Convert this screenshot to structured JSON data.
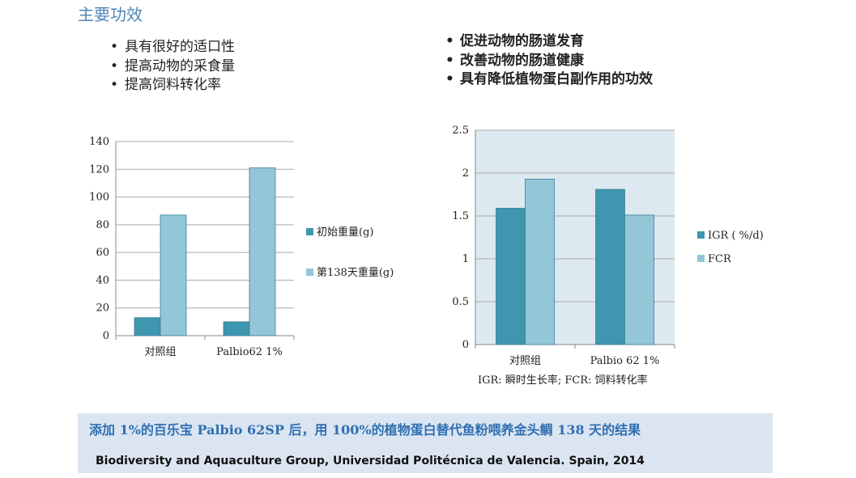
{
  "title": "主要功效",
  "bullets_left": [
    "具有很好的适口性",
    "提高动物的采食量",
    "提高饲料转化率"
  ],
  "bullets_right": [
    "促进动物的肠道发育",
    "改善动物的肠道健康",
    "具有降低植物蛋白副作用的功效"
  ],
  "colors": {
    "series_dark": "#3f96af",
    "series_light": "#93c6d7",
    "plot_bg": "#dde9f0",
    "grid": "#a9a9a9"
  },
  "chart_data": [
    {
      "type": "bar",
      "categories": [
        "对照组",
        "Palbio62 1%"
      ],
      "series": [
        {
          "name": "初始重量(g)",
          "values": [
            13,
            10
          ]
        },
        {
          "name": "第138天重量(g)",
          "values": [
            87,
            121
          ]
        }
      ],
      "ylim": [
        0,
        140
      ],
      "yticks": [
        "0",
        "20",
        "40",
        "60",
        "80",
        "100",
        "120",
        "140"
      ],
      "grid": true,
      "legend": "right"
    },
    {
      "type": "bar",
      "categories": [
        "对照组",
        "Palbio 62 1%"
      ],
      "series": [
        {
          "name": "IGR ( %/d)",
          "values": [
            1.59,
            1.81
          ]
        },
        {
          "name": "FCR",
          "values": [
            1.93,
            1.51
          ]
        }
      ],
      "ylim": [
        0,
        2.5
      ],
      "yticks": [
        "0",
        "0.5",
        "1",
        "1.5",
        "2",
        "2.5"
      ],
      "grid": true,
      "legend": "right",
      "annotation": "IGR: 瞬时生长率;  FCR: 饲料转化率"
    }
  ],
  "footer": {
    "main": "添加 1%的百乐宝 Palbio 62SP 后，用 100%的植物蛋白替代鱼粉喂养金头鲷 138 天的结果",
    "source": "Biodiversity and Aquaculture Group, Universidad Politécnica de Valencia.  Spain, 2014"
  }
}
